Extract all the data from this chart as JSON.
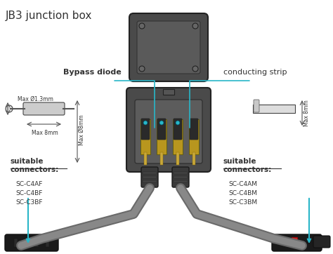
{
  "title": "JB3 junction box",
  "bg_color": "#ffffff",
  "label_color": "#333333",
  "cyan_color": "#29b6c8",
  "dark_gray": "#3a3a3a",
  "mid_gray": "#5a5a5a",
  "light_gray": "#aaaaaa",
  "gold_color": "#c8a83a",
  "bypass_diode_label": "Bypass diode",
  "conducting_strip_label": "conducting strip",
  "left_connectors_title": "suitable\nconnectors:",
  "left_connectors": [
    "SC-C4AF",
    "SC-C4BF",
    "SC-C3BF"
  ],
  "right_connectors_title": "suitable\nconnectors:",
  "right_connectors": [
    "SC-C4AM",
    "SC-C4BM",
    "SC-C3BM"
  ],
  "dim1": "Max Ø1.3mm",
  "dim2": "Max 8mm",
  "dim3": "Max Ø8mm",
  "dim4": "Max 8mm"
}
